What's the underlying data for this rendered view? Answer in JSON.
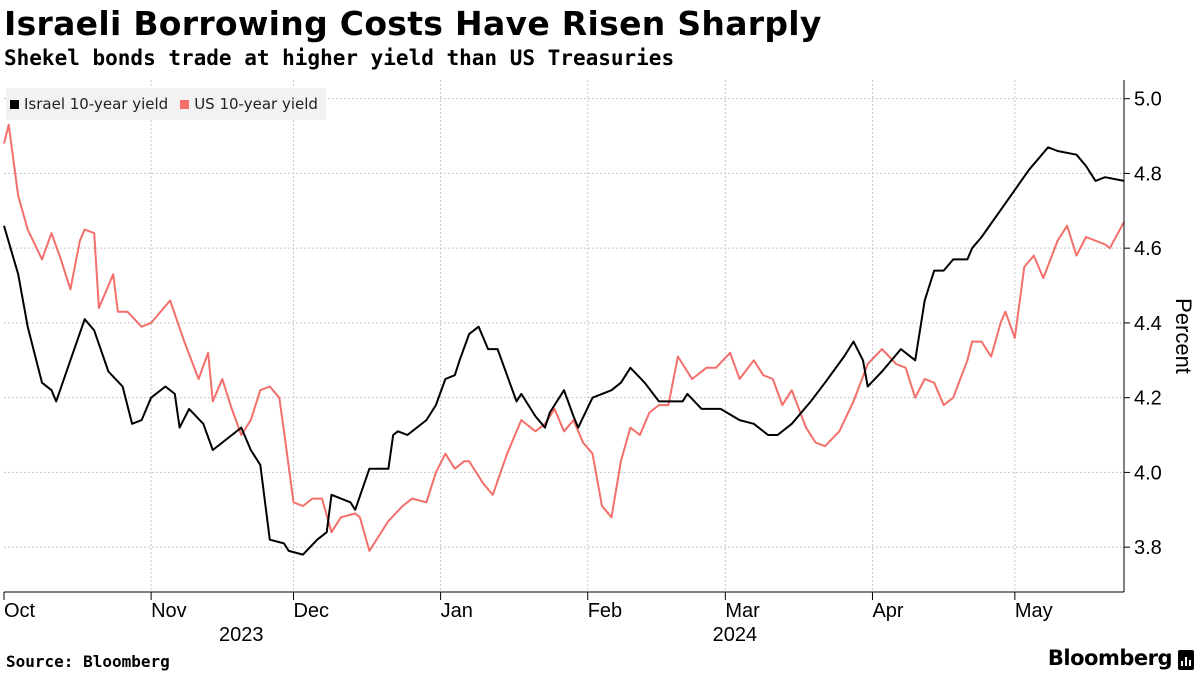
{
  "header": {
    "title": "Israeli Borrowing Costs Have Risen Sharply",
    "subtitle": "Shekel bonds trade at higher yield than US Treasuries"
  },
  "footer": {
    "source": "Source: Bloomberg",
    "brand": "Bloomberg"
  },
  "colors": {
    "israel": "#000000",
    "us": "#f26f6b",
    "grid": "#c8c8c8",
    "axis": "#000000"
  },
  "chart_data": {
    "type": "line",
    "title": "Israeli Borrowing Costs Have Risen Sharply",
    "subtitle": "Shekel bonds trade at higher yield than US Treasuries",
    "xlabel": "",
    "ylabel": "Percent",
    "ylim": [
      3.68,
      5.05
    ],
    "yticks": [
      3.8,
      4.0,
      4.2,
      4.4,
      4.6,
      4.8,
      5.0
    ],
    "ytick_labels": [
      "3.8",
      "4.0",
      "4.2",
      "4.4",
      "4.6",
      "4.8",
      "5.0"
    ],
    "x_domain": [
      "2023-10-01",
      "2024-05-24"
    ],
    "months": [
      {
        "label": "Oct",
        "date": "2023-10-01"
      },
      {
        "label": "Nov",
        "date": "2023-11-01"
      },
      {
        "label": "Dec",
        "date": "2023-12-01"
      },
      {
        "label": "Jan",
        "date": "2024-01-01"
      },
      {
        "label": "Feb",
        "date": "2024-02-01"
      },
      {
        "label": "Mar",
        "date": "2024-03-01"
      },
      {
        "label": "Apr",
        "date": "2024-04-01"
      },
      {
        "label": "May",
        "date": "2024-05-01"
      }
    ],
    "years": [
      {
        "label": "2023",
        "date": "2023-11-20"
      },
      {
        "label": "2024",
        "date": "2024-03-03"
      }
    ],
    "legend_position": "top-left",
    "grid": true,
    "series": [
      {
        "name": "Israel 10-year yield",
        "color": "#000000",
        "points": [
          [
            "2023-10-01",
            4.66
          ],
          [
            "2023-10-04",
            4.53
          ],
          [
            "2023-10-06",
            4.39
          ],
          [
            "2023-10-09",
            4.24
          ],
          [
            "2023-10-11",
            4.22
          ],
          [
            "2023-10-12",
            4.19
          ],
          [
            "2023-10-15",
            4.3
          ],
          [
            "2023-10-18",
            4.41
          ],
          [
            "2023-10-20",
            4.38
          ],
          [
            "2023-10-23",
            4.27
          ],
          [
            "2023-10-26",
            4.23
          ],
          [
            "2023-10-28",
            4.13
          ],
          [
            "2023-10-30",
            4.14
          ],
          [
            "2023-11-01",
            4.2
          ],
          [
            "2023-11-04",
            4.23
          ],
          [
            "2023-11-06",
            4.21
          ],
          [
            "2023-11-07",
            4.12
          ],
          [
            "2023-11-09",
            4.17
          ],
          [
            "2023-11-12",
            4.13
          ],
          [
            "2023-11-14",
            4.06
          ],
          [
            "2023-11-20",
            4.12
          ],
          [
            "2023-11-22",
            4.06
          ],
          [
            "2023-11-24",
            4.02
          ],
          [
            "2023-11-26",
            3.82
          ],
          [
            "2023-11-29",
            3.81
          ],
          [
            "2023-11-30",
            3.79
          ],
          [
            "2023-12-03",
            3.78
          ],
          [
            "2023-12-06",
            3.82
          ],
          [
            "2023-12-08",
            3.84
          ],
          [
            "2023-12-09",
            3.94
          ],
          [
            "2023-12-11",
            3.93
          ],
          [
            "2023-12-13",
            3.92
          ],
          [
            "2023-12-14",
            3.9
          ],
          [
            "2023-12-17",
            4.01
          ],
          [
            "2023-12-21",
            4.01
          ],
          [
            "2023-12-22",
            4.1
          ],
          [
            "2023-12-23",
            4.11
          ],
          [
            "2023-12-25",
            4.1
          ],
          [
            "2023-12-29",
            4.14
          ],
          [
            "2023-12-31",
            4.18
          ],
          [
            "2024-01-02",
            4.25
          ],
          [
            "2024-01-04",
            4.26
          ],
          [
            "2024-01-05",
            4.3
          ],
          [
            "2024-01-07",
            4.37
          ],
          [
            "2024-01-09",
            4.39
          ],
          [
            "2024-01-11",
            4.33
          ],
          [
            "2024-01-13",
            4.33
          ],
          [
            "2024-01-17",
            4.19
          ],
          [
            "2024-01-18",
            4.21
          ],
          [
            "2024-01-21",
            4.15
          ],
          [
            "2024-01-23",
            4.12
          ],
          [
            "2024-01-24",
            4.16
          ],
          [
            "2024-01-27",
            4.22
          ],
          [
            "2024-01-29",
            4.15
          ],
          [
            "2024-01-30",
            4.12
          ],
          [
            "2024-02-02",
            4.2
          ],
          [
            "2024-02-06",
            4.22
          ],
          [
            "2024-02-08",
            4.24
          ],
          [
            "2024-02-10",
            4.28
          ],
          [
            "2024-02-13",
            4.24
          ],
          [
            "2024-02-16",
            4.19
          ],
          [
            "2024-02-21",
            4.19
          ],
          [
            "2024-02-22",
            4.21
          ],
          [
            "2024-02-25",
            4.17
          ],
          [
            "2024-02-29",
            4.17
          ],
          [
            "2024-03-04",
            4.14
          ],
          [
            "2024-03-07",
            4.13
          ],
          [
            "2024-03-10",
            4.1
          ],
          [
            "2024-03-12",
            4.1
          ],
          [
            "2024-03-15",
            4.13
          ],
          [
            "2024-03-19",
            4.19
          ],
          [
            "2024-03-22",
            4.24
          ],
          [
            "2024-03-26",
            4.31
          ],
          [
            "2024-03-28",
            4.35
          ],
          [
            "2024-03-30",
            4.3
          ],
          [
            "2024-03-31",
            4.23
          ],
          [
            "2024-04-03",
            4.27
          ],
          [
            "2024-04-07",
            4.33
          ],
          [
            "2024-04-10",
            4.3
          ],
          [
            "2024-04-12",
            4.46
          ],
          [
            "2024-04-14",
            4.54
          ],
          [
            "2024-04-16",
            4.54
          ],
          [
            "2024-04-18",
            4.57
          ],
          [
            "2024-04-21",
            4.57
          ],
          [
            "2024-04-22",
            4.6
          ],
          [
            "2024-04-24",
            4.63
          ],
          [
            "2024-04-29",
            4.72
          ],
          [
            "2024-05-04",
            4.81
          ],
          [
            "2024-05-08",
            4.87
          ],
          [
            "2024-05-10",
            4.86
          ],
          [
            "2024-05-14",
            4.85
          ],
          [
            "2024-05-16",
            4.82
          ],
          [
            "2024-05-18",
            4.78
          ],
          [
            "2024-05-20",
            4.79
          ],
          [
            "2024-05-24",
            4.78
          ]
        ]
      },
      {
        "name": "US 10-year yield",
        "color": "#f26f6b",
        "points": [
          [
            "2023-10-01",
            4.88
          ],
          [
            "2023-10-02",
            4.93
          ],
          [
            "2023-10-04",
            4.74
          ],
          [
            "2023-10-06",
            4.65
          ],
          [
            "2023-10-09",
            4.57
          ],
          [
            "2023-10-11",
            4.64
          ],
          [
            "2023-10-13",
            4.57
          ],
          [
            "2023-10-15",
            4.49
          ],
          [
            "2023-10-17",
            4.62
          ],
          [
            "2023-10-18",
            4.65
          ],
          [
            "2023-10-20",
            4.64
          ],
          [
            "2023-10-21",
            4.44
          ],
          [
            "2023-10-24",
            4.53
          ],
          [
            "2023-10-25",
            4.43
          ],
          [
            "2023-10-27",
            4.43
          ],
          [
            "2023-10-30",
            4.39
          ],
          [
            "2023-11-01",
            4.4
          ],
          [
            "2023-11-05",
            4.46
          ],
          [
            "2023-11-08",
            4.35
          ],
          [
            "2023-11-11",
            4.25
          ],
          [
            "2023-11-13",
            4.32
          ],
          [
            "2023-11-14",
            4.19
          ],
          [
            "2023-11-16",
            4.25
          ],
          [
            "2023-11-18",
            4.17
          ],
          [
            "2023-11-20",
            4.1
          ],
          [
            "2023-11-22",
            4.14
          ],
          [
            "2023-11-24",
            4.22
          ],
          [
            "2023-11-26",
            4.23
          ],
          [
            "2023-11-28",
            4.2
          ],
          [
            "2023-11-29",
            4.11
          ],
          [
            "2023-12-01",
            3.92
          ],
          [
            "2023-12-03",
            3.91
          ],
          [
            "2023-12-05",
            3.93
          ],
          [
            "2023-12-07",
            3.93
          ],
          [
            "2023-12-09",
            3.84
          ],
          [
            "2023-12-11",
            3.88
          ],
          [
            "2023-12-14",
            3.89
          ],
          [
            "2023-12-15",
            3.88
          ],
          [
            "2023-12-17",
            3.79
          ],
          [
            "2023-12-21",
            3.87
          ],
          [
            "2023-12-24",
            3.91
          ],
          [
            "2023-12-26",
            3.93
          ],
          [
            "2023-12-29",
            3.92
          ],
          [
            "2023-12-31",
            4.0
          ],
          [
            "2024-01-02",
            4.05
          ],
          [
            "2024-01-04",
            4.01
          ],
          [
            "2024-01-06",
            4.03
          ],
          [
            "2024-01-07",
            4.03
          ],
          [
            "2024-01-10",
            3.97
          ],
          [
            "2024-01-12",
            3.94
          ],
          [
            "2024-01-15",
            4.05
          ],
          [
            "2024-01-18",
            4.14
          ],
          [
            "2024-01-21",
            4.11
          ],
          [
            "2024-01-23",
            4.13
          ],
          [
            "2024-01-25",
            4.17
          ],
          [
            "2024-01-27",
            4.11
          ],
          [
            "2024-01-29",
            4.14
          ],
          [
            "2024-01-31",
            4.08
          ],
          [
            "2024-02-02",
            4.05
          ],
          [
            "2024-02-04",
            3.91
          ],
          [
            "2024-02-06",
            3.88
          ],
          [
            "2024-02-08",
            4.03
          ],
          [
            "2024-02-10",
            4.12
          ],
          [
            "2024-02-12",
            4.1
          ],
          [
            "2024-02-14",
            4.16
          ],
          [
            "2024-02-16",
            4.18
          ],
          [
            "2024-02-18",
            4.18
          ],
          [
            "2024-02-20",
            4.31
          ],
          [
            "2024-02-23",
            4.25
          ],
          [
            "2024-02-26",
            4.28
          ],
          [
            "2024-02-28",
            4.28
          ],
          [
            "2024-03-02",
            4.32
          ],
          [
            "2024-03-04",
            4.25
          ],
          [
            "2024-03-07",
            4.3
          ],
          [
            "2024-03-09",
            4.26
          ],
          [
            "2024-03-11",
            4.25
          ],
          [
            "2024-03-13",
            4.18
          ],
          [
            "2024-03-15",
            4.22
          ],
          [
            "2024-03-18",
            4.12
          ],
          [
            "2024-03-20",
            4.08
          ],
          [
            "2024-03-22",
            4.07
          ],
          [
            "2024-03-25",
            4.11
          ],
          [
            "2024-03-28",
            4.19
          ],
          [
            "2024-03-31",
            4.29
          ],
          [
            "2024-04-03",
            4.33
          ],
          [
            "2024-04-06",
            4.29
          ],
          [
            "2024-04-08",
            4.28
          ],
          [
            "2024-04-10",
            4.2
          ],
          [
            "2024-04-12",
            4.25
          ],
          [
            "2024-04-14",
            4.24
          ],
          [
            "2024-04-16",
            4.18
          ],
          [
            "2024-04-18",
            4.2
          ],
          [
            "2024-04-21",
            4.3
          ],
          [
            "2024-04-22",
            4.35
          ],
          [
            "2024-04-24",
            4.35
          ],
          [
            "2024-04-26",
            4.31
          ],
          [
            "2024-04-28",
            4.4
          ],
          [
            "2024-04-29",
            4.43
          ],
          [
            "2024-05-01",
            4.36
          ],
          [
            "2024-05-03",
            4.55
          ],
          [
            "2024-05-05",
            4.58
          ],
          [
            "2024-05-07",
            4.52
          ],
          [
            "2024-05-10",
            4.62
          ],
          [
            "2024-05-12",
            4.66
          ],
          [
            "2024-05-14",
            4.58
          ],
          [
            "2024-05-16",
            4.63
          ],
          [
            "2024-05-20",
            4.61
          ],
          [
            "2024-05-21",
            4.6
          ],
          [
            "2024-05-24",
            4.67
          ]
        ]
      }
    ]
  }
}
